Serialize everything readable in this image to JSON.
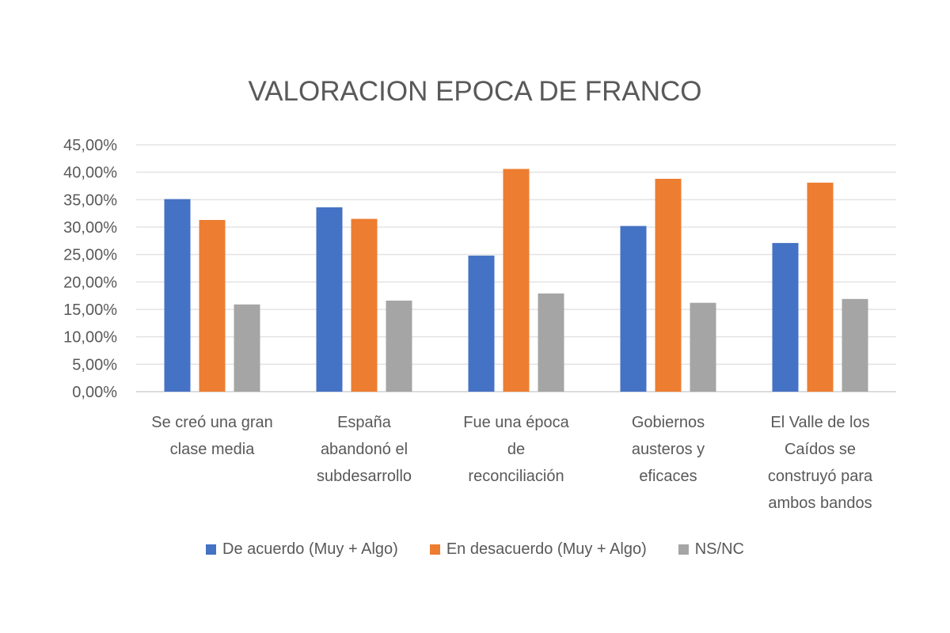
{
  "chart_data": {
    "type": "bar",
    "title": "VALORACION EPOCA DE FRANCO",
    "categories": [
      [
        "Se creó una gran",
        "clase media"
      ],
      [
        "España",
        "abandonó el",
        "subdesarrollo"
      ],
      [
        "Fue una época",
        "de",
        "reconciliación"
      ],
      [
        "Gobiernos",
        "austeros y",
        "eficaces"
      ],
      [
        "El Valle de los",
        "Caídos se",
        "construyó para",
        "ambos bandos"
      ]
    ],
    "series": [
      {
        "name": "De acuerdo (Muy + Algo)",
        "color": "#4472C4",
        "values": [
          35.1,
          33.6,
          24.8,
          30.2,
          27.1
        ]
      },
      {
        "name": "En desacuerdo (Muy + Algo)",
        "color": "#ED7D31",
        "values": [
          31.3,
          31.5,
          40.6,
          38.8,
          38.1
        ]
      },
      {
        "name": "NS/NC",
        "color": "#A5A5A5",
        "values": [
          15.9,
          16.6,
          17.9,
          16.2,
          16.9
        ]
      }
    ],
    "ylim": [
      0,
      45
    ],
    "yticks": [
      "0,00%",
      "5,00%",
      "10,00%",
      "15,00%",
      "20,00%",
      "25,00%",
      "30,00%",
      "35,00%",
      "40,00%",
      "45,00%"
    ],
    "grid": true,
    "legend": "bottom",
    "xlabel": "",
    "ylabel": ""
  }
}
